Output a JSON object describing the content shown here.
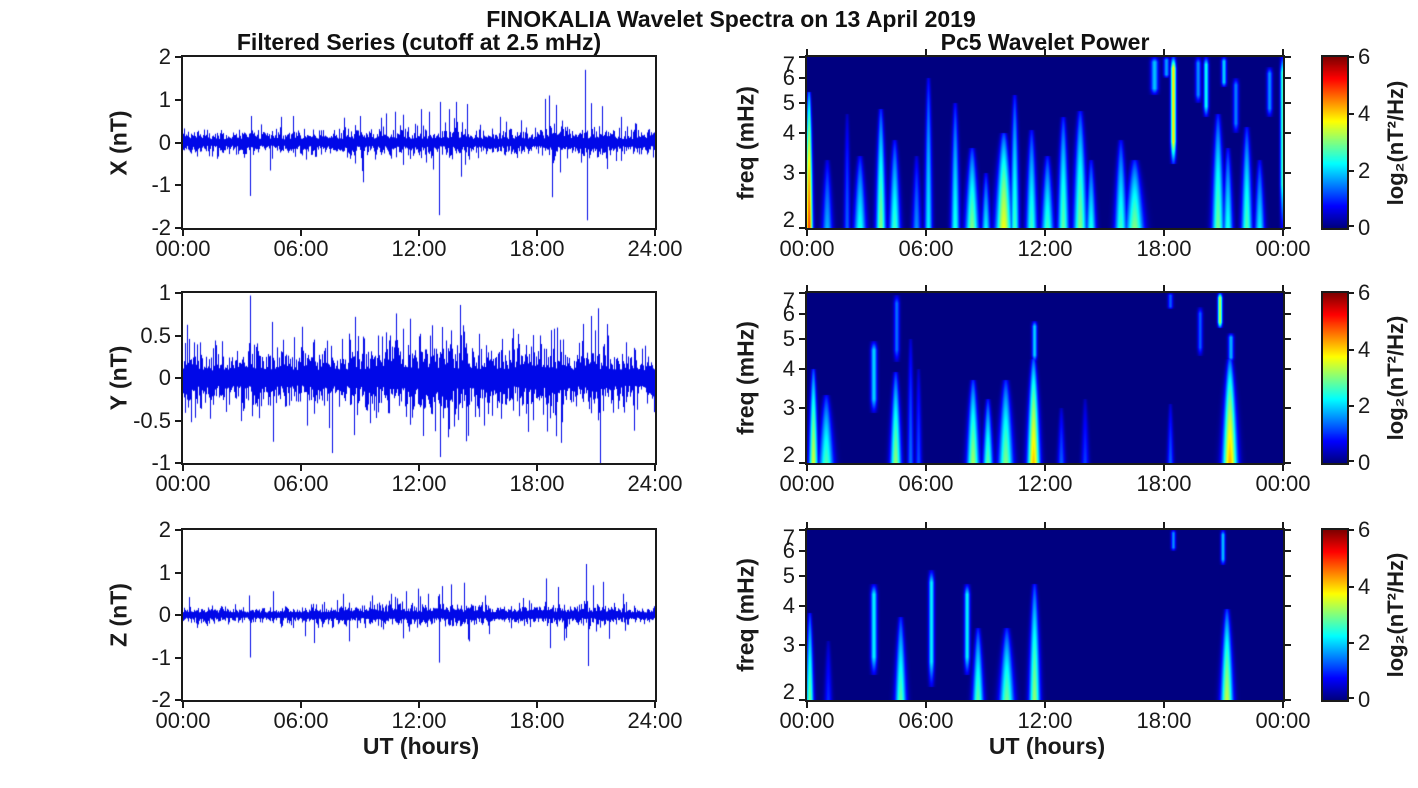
{
  "title": "FINOKALIA Wavelet Spectra on 13 April 2019",
  "colors": {
    "line_blue": "#0008e8",
    "axis": "#1a1a1a",
    "heatmap_background": "#000080"
  },
  "left_column": {
    "title": "Filtered Series (cutoff at 2.5 mHz)",
    "xlabel": "UT (hours)",
    "xtick_labels": [
      "00:00",
      "06:00",
      "12:00",
      "18:00",
      "24:00"
    ],
    "panels": [
      {
        "ylabel": "X (nT)",
        "ytick_labels": [
          "2",
          "1",
          "0",
          "-1",
          "-2"
        ]
      },
      {
        "ylabel": "Y (nT)",
        "ytick_labels": [
          "1",
          "0.5",
          "0",
          "-0.5",
          "-1"
        ]
      },
      {
        "ylabel": "Z (nT)",
        "ytick_labels": [
          "2",
          "1",
          "0",
          "-1",
          "-2"
        ]
      }
    ]
  },
  "right_column": {
    "title": "Pc5 Wavelet Power",
    "xlabel": "UT (hours)",
    "xtick_labels": [
      "00:00",
      "06:00",
      "12:00",
      "18:00",
      "00:00"
    ],
    "ylabel": "freq (mHz)",
    "ytick_labels": [
      "7",
      "6",
      "5",
      "4",
      "3",
      "2"
    ],
    "colorbar": {
      "label": "log₂(nT²/Hz)",
      "tick_labels": [
        "6",
        "4",
        "2",
        "0"
      ]
    }
  },
  "chart_data": [
    {
      "type": "line",
      "name": "X filtered series",
      "ylabel": "X (nT)",
      "xlabel": "UT (hours)",
      "x_range_hours": [
        0,
        24
      ],
      "xticks_hours": [
        0,
        6,
        12,
        18,
        24
      ],
      "ylim": [
        -2,
        2
      ],
      "yticks": [
        2,
        1,
        0,
        -1,
        -2
      ],
      "line_color": "#0008e8",
      "seed": 11,
      "noise_envelope_nT": [
        [
          0,
          0.1
        ],
        [
          3,
          0.09
        ],
        [
          6,
          0.1
        ],
        [
          9,
          0.12
        ],
        [
          12,
          0.13
        ],
        [
          14,
          0.13
        ],
        [
          16,
          0.11
        ],
        [
          18,
          0.12
        ],
        [
          19,
          0.16
        ],
        [
          20,
          0.14
        ],
        [
          21,
          0.16
        ],
        [
          22,
          0.12
        ],
        [
          24,
          0.1
        ]
      ],
      "spikes_hour_amp": [
        [
          3.4,
          -1.25
        ],
        [
          3.45,
          0.62
        ],
        [
          5.0,
          0.6
        ],
        [
          5.6,
          0.62
        ],
        [
          8.2,
          0.58
        ],
        [
          9.0,
          0.62
        ],
        [
          10.3,
          0.68
        ],
        [
          10.8,
          0.72
        ],
        [
          11.2,
          0.65
        ],
        [
          12.1,
          0.78
        ],
        [
          12.5,
          0.72
        ],
        [
          13.0,
          -1.7
        ],
        [
          13.06,
          0.95
        ],
        [
          13.5,
          0.78
        ],
        [
          13.9,
          0.95
        ],
        [
          14.15,
          -0.8
        ],
        [
          14.45,
          0.9
        ],
        [
          16.1,
          0.6
        ],
        [
          17.2,
          0.52
        ],
        [
          18.4,
          1.02
        ],
        [
          18.62,
          1.1
        ],
        [
          18.75,
          -1.28
        ],
        [
          18.95,
          0.88
        ],
        [
          19.15,
          -0.7
        ],
        [
          20.45,
          1.7
        ],
        [
          20.55,
          -1.82
        ],
        [
          20.75,
          0.92
        ],
        [
          21.3,
          0.85
        ],
        [
          21.55,
          -0.62
        ],
        [
          22.25,
          0.6
        ],
        [
          23.0,
          0.45
        ]
      ]
    },
    {
      "type": "line",
      "name": "Y filtered series",
      "ylabel": "Y (nT)",
      "xlabel": "UT (hours)",
      "x_range_hours": [
        0,
        24
      ],
      "xticks_hours": [
        0,
        6,
        12,
        18,
        24
      ],
      "ylim": [
        -1,
        1
      ],
      "yticks": [
        1,
        0.5,
        0,
        -0.5,
        -1
      ],
      "line_color": "#0008e8",
      "seed": 22,
      "noise_envelope_nT": [
        [
          0,
          0.15
        ],
        [
          2,
          0.12
        ],
        [
          4,
          0.14
        ],
        [
          6,
          0.13
        ],
        [
          8,
          0.14
        ],
        [
          10,
          0.17
        ],
        [
          12,
          0.18
        ],
        [
          14,
          0.18
        ],
        [
          16,
          0.15
        ],
        [
          18,
          0.16
        ],
        [
          19,
          0.17
        ],
        [
          20,
          0.15
        ],
        [
          21,
          0.17
        ],
        [
          22,
          0.13
        ],
        [
          24,
          0.12
        ]
      ],
      "spikes_hour_amp": [
        [
          0.3,
          0.46
        ],
        [
          0.4,
          -0.52
        ],
        [
          1.5,
          0.35
        ],
        [
          3.4,
          0.97
        ],
        [
          3.5,
          -0.45
        ],
        [
          4.5,
          0.66
        ],
        [
          4.6,
          -0.75
        ],
        [
          5.1,
          0.45
        ],
        [
          6.3,
          -0.56
        ],
        [
          6.6,
          0.42
        ],
        [
          7.3,
          0.44
        ],
        [
          8.1,
          0.46
        ],
        [
          9.9,
          0.5
        ],
        [
          10.5,
          0.5
        ],
        [
          11.2,
          0.58
        ],
        [
          11.55,
          -0.55
        ],
        [
          12.05,
          0.52
        ],
        [
          12.65,
          0.62
        ],
        [
          13.05,
          -0.93
        ],
        [
          13.15,
          0.6
        ],
        [
          13.65,
          0.56
        ],
        [
          14.25,
          0.62
        ],
        [
          14.5,
          -0.68
        ],
        [
          15.05,
          0.52
        ],
        [
          15.3,
          -0.56
        ],
        [
          16.2,
          0.46
        ],
        [
          17.1,
          0.4
        ],
        [
          18.85,
          0.58
        ],
        [
          19.25,
          -0.52
        ],
        [
          20.95,
          0.56
        ],
        [
          21.1,
          0.82
        ],
        [
          21.2,
          -1.0
        ],
        [
          21.6,
          0.5
        ],
        [
          22.55,
          0.42
        ],
        [
          23.5,
          0.38
        ]
      ]
    },
    {
      "type": "line",
      "name": "Z filtered series",
      "ylabel": "Z (nT)",
      "xlabel": "UT (hours)",
      "x_range_hours": [
        0,
        24
      ],
      "xticks_hours": [
        0,
        6,
        12,
        18,
        24
      ],
      "ylim": [
        -2,
        2
      ],
      "yticks": [
        2,
        1,
        0,
        -1,
        -2
      ],
      "line_color": "#0008e8",
      "seed": 33,
      "noise_envelope_nT": [
        [
          0,
          0.07
        ],
        [
          3,
          0.06
        ],
        [
          6,
          0.07
        ],
        [
          9,
          0.08
        ],
        [
          10,
          0.1
        ],
        [
          12,
          0.1
        ],
        [
          14,
          0.1
        ],
        [
          16,
          0.07
        ],
        [
          18,
          0.08
        ],
        [
          19,
          0.1
        ],
        [
          20,
          0.09
        ],
        [
          21,
          0.1
        ],
        [
          22,
          0.07
        ],
        [
          24,
          0.06
        ]
      ],
      "spikes_hour_amp": [
        [
          0.3,
          0.42
        ],
        [
          3.35,
          0.46
        ],
        [
          3.42,
          -1.0
        ],
        [
          4.6,
          0.56
        ],
        [
          6.2,
          -0.5
        ],
        [
          6.65,
          -0.66
        ],
        [
          8.15,
          0.5
        ],
        [
          8.45,
          -0.62
        ],
        [
          9.6,
          0.46
        ],
        [
          10.6,
          0.5
        ],
        [
          11.35,
          0.56
        ],
        [
          11.95,
          0.62
        ],
        [
          12.45,
          0.5
        ],
        [
          13.0,
          -1.12
        ],
        [
          13.15,
          0.68
        ],
        [
          13.65,
          0.72
        ],
        [
          14.3,
          0.76
        ],
        [
          14.55,
          -0.62
        ],
        [
          15.35,
          0.46
        ],
        [
          17.3,
          0.4
        ],
        [
          18.45,
          0.86
        ],
        [
          18.65,
          -0.78
        ],
        [
          19.05,
          0.66
        ],
        [
          19.35,
          -0.6
        ],
        [
          20.5,
          1.2
        ],
        [
          20.6,
          -1.2
        ],
        [
          20.85,
          0.7
        ],
        [
          21.35,
          0.78
        ],
        [
          21.65,
          -0.56
        ],
        [
          22.35,
          0.5
        ]
      ]
    },
    {
      "type": "heatmap",
      "name": "X wavelet power",
      "ylabel": "freq (mHz)",
      "xlabel": "UT (hours)",
      "x_range_hours": [
        0,
        24
      ],
      "xticks_hours": [
        0,
        6,
        12,
        18,
        24
      ],
      "freq_range_mHz": [
        2,
        7
      ],
      "freq_scale": "log",
      "freq_ticks": [
        2,
        3,
        4,
        5,
        6,
        7
      ],
      "power_range_log2": [
        0,
        6
      ],
      "colormap": "jet",
      "plumes_t_ftop_peak_halfwidth": [
        [
          0.08,
          5.4,
          4.9,
          0.09
        ],
        [
          1.0,
          3.3,
          1.8,
          0.15
        ],
        [
          2.0,
          4.6,
          1.3,
          0.08
        ],
        [
          2.65,
          3.4,
          2.4,
          0.18
        ],
        [
          3.7,
          4.8,
          3.0,
          0.14
        ],
        [
          4.4,
          3.8,
          2.6,
          0.16
        ],
        [
          5.5,
          3.4,
          1.6,
          0.12
        ],
        [
          6.1,
          6.0,
          2.2,
          0.1
        ],
        [
          7.45,
          5.0,
          2.4,
          0.12
        ],
        [
          8.3,
          3.6,
          3.0,
          0.2
        ],
        [
          9.0,
          3.0,
          2.2,
          0.12
        ],
        [
          9.9,
          4.0,
          3.7,
          0.25
        ],
        [
          10.45,
          5.3,
          2.6,
          0.12
        ],
        [
          11.3,
          4.1,
          2.6,
          0.16
        ],
        [
          12.1,
          3.4,
          2.6,
          0.18
        ],
        [
          12.9,
          4.5,
          2.8,
          0.16
        ],
        [
          13.75,
          4.7,
          3.0,
          0.2
        ],
        [
          14.3,
          3.3,
          2.4,
          0.14
        ],
        [
          15.8,
          3.8,
          2.6,
          0.18
        ],
        [
          16.5,
          3.3,
          3.0,
          0.28
        ],
        [
          20.7,
          4.6,
          2.9,
          0.18
        ],
        [
          21.2,
          3.6,
          2.4,
          0.14
        ],
        [
          22.15,
          4.2,
          2.7,
          0.16
        ],
        [
          22.8,
          3.3,
          2.2,
          0.14
        ]
      ],
      "bands_t_flo_fhi_peak_halfwidth": [
        [
          17.5,
          5.3,
          7.0,
          1.9,
          0.1
        ],
        [
          18.1,
          6.0,
          7.0,
          1.7,
          0.07
        ],
        [
          18.45,
          3.2,
          7.0,
          3.9,
          0.06
        ],
        [
          19.7,
          5.0,
          7.0,
          1.6,
          0.07
        ],
        [
          20.1,
          4.5,
          7.0,
          2.3,
          0.06
        ],
        [
          21.0,
          5.6,
          7.0,
          2.0,
          0.06
        ],
        [
          21.6,
          4.0,
          6.0,
          1.5,
          0.07
        ],
        [
          23.3,
          4.5,
          6.5,
          1.6,
          0.07
        ],
        [
          23.95,
          2.0,
          7.0,
          2.6,
          0.05
        ]
      ]
    },
    {
      "type": "heatmap",
      "name": "Y wavelet power",
      "ylabel": "freq (mHz)",
      "xlabel": "UT (hours)",
      "x_range_hours": [
        0,
        24
      ],
      "xticks_hours": [
        0,
        6,
        12,
        18,
        24
      ],
      "freq_range_mHz": [
        2,
        7
      ],
      "freq_scale": "log",
      "freq_ticks": [
        2,
        3,
        4,
        5,
        6,
        7
      ],
      "power_range_log2": [
        0,
        6
      ],
      "colormap": "jet",
      "plumes_t_ftop_peak_halfwidth": [
        [
          0.3,
          4.0,
          3.5,
          0.12
        ],
        [
          0.95,
          3.3,
          2.7,
          0.22
        ],
        [
          4.45,
          3.9,
          3.1,
          0.16
        ],
        [
          5.2,
          5.0,
          1.4,
          0.08
        ],
        [
          5.6,
          4.0,
          1.2,
          0.08
        ],
        [
          8.35,
          3.7,
          3.2,
          0.18
        ],
        [
          9.1,
          3.2,
          2.8,
          0.14
        ],
        [
          10.0,
          3.7,
          3.0,
          0.22
        ],
        [
          11.4,
          4.3,
          4.1,
          0.18
        ],
        [
          12.8,
          3.0,
          1.3,
          0.1
        ],
        [
          14.0,
          3.2,
          1.1,
          0.1
        ],
        [
          18.3,
          3.1,
          1.3,
          0.08
        ],
        [
          21.3,
          4.3,
          4.2,
          0.22
        ]
      ],
      "bands_t_flo_fhi_peak_halfwidth": [
        [
          3.35,
          2.9,
          4.9,
          2.0,
          0.08
        ],
        [
          4.5,
          4.2,
          6.9,
          1.4,
          0.07
        ],
        [
          11.45,
          4.2,
          5.7,
          2.0,
          0.06
        ],
        [
          18.3,
          6.2,
          7.0,
          1.3,
          0.06
        ],
        [
          19.8,
          4.4,
          6.3,
          1.3,
          0.06
        ],
        [
          20.8,
          5.4,
          7.0,
          3.4,
          0.05
        ],
        [
          21.35,
          4.2,
          5.2,
          1.8,
          0.07
        ]
      ]
    },
    {
      "type": "heatmap",
      "name": "Z wavelet power",
      "ylabel": "freq (mHz)",
      "xlabel": "UT (hours)",
      "x_range_hours": [
        0,
        24
      ],
      "xticks_hours": [
        0,
        6,
        12,
        18,
        24
      ],
      "freq_range_mHz": [
        2,
        7
      ],
      "freq_scale": "log",
      "freq_ticks": [
        2,
        3,
        4,
        5,
        6,
        7
      ],
      "power_range_log2": [
        0,
        6
      ],
      "colormap": "jet",
      "plumes_t_ftop_peak_halfwidth": [
        [
          0.12,
          3.8,
          2.9,
          0.1
        ],
        [
          1.05,
          3.1,
          1.0,
          0.1
        ],
        [
          4.7,
          3.7,
          2.8,
          0.16
        ],
        [
          8.6,
          3.4,
          2.8,
          0.16
        ],
        [
          10.05,
          3.4,
          2.9,
          0.22
        ],
        [
          11.45,
          4.7,
          3.1,
          0.16
        ],
        [
          21.15,
          3.9,
          3.4,
          0.18
        ]
      ],
      "bands_t_flo_fhi_peak_halfwidth": [
        [
          3.35,
          2.4,
          4.7,
          2.2,
          0.08
        ],
        [
          6.25,
          2.2,
          5.2,
          2.2,
          0.07
        ],
        [
          8.05,
          2.4,
          4.7,
          2.2,
          0.07
        ],
        [
          18.45,
          6.0,
          7.0,
          1.6,
          0.05
        ],
        [
          20.95,
          5.4,
          7.0,
          1.9,
          0.05
        ]
      ]
    }
  ]
}
